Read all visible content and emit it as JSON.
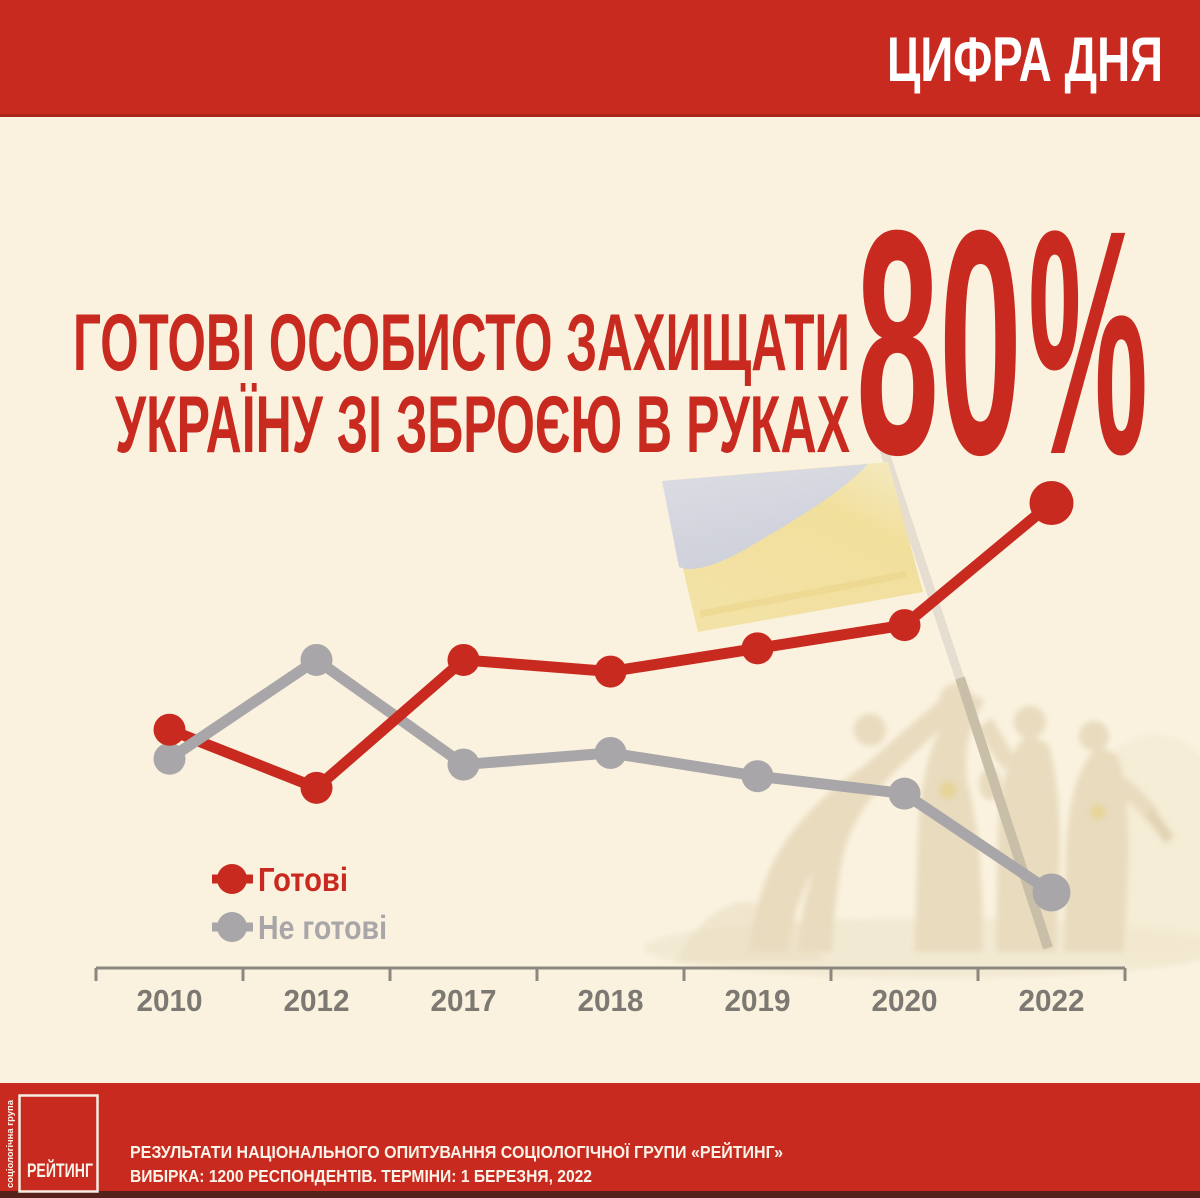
{
  "header": {
    "badge": "ЦИФРА ДНЯ"
  },
  "headline": {
    "title_line1": "ГОТОВІ ОСОБИСТО ЗАХИЩАТИ",
    "title_line2": "УКРАЇНУ ЗІ ЗБРОЄЮ В РУКАХ",
    "big_value": "80%"
  },
  "chart_data": {
    "type": "line",
    "categories": [
      "2010",
      "2012",
      "2017",
      "2018",
      "2019",
      "2020",
      "2022"
    ],
    "series": [
      {
        "name": "Готові",
        "color": "#c92a20",
        "values": [
          41,
          31,
          53,
          51,
          55,
          59,
          80
        ]
      },
      {
        "name": "Не готові",
        "color": "#a8a6a8",
        "values": [
          36,
          53,
          35,
          37,
          33,
          30,
          13
        ]
      }
    ],
    "ylim": [
      0,
      100
    ],
    "grid": false,
    "axis": "x-only",
    "legend_position": "bottom-left"
  },
  "footer": {
    "logo_text": "РЕЙТИНГ",
    "logo_side_text": "соціологічна група",
    "line1": "РЕЗУЛЬТАТИ НАЦІОНАЛЬНОГО ОПИТУВАННЯ СОЦІОЛОГІЧНОЇ ГРУПИ «РЕЙТИНГ»",
    "line2": "ВИБІРКА: 1200 РЕСПОНДЕНТІВ. ТЕРМІНИ: 1 БЕРЕЗНЯ, 2022"
  },
  "colors": {
    "accent_red": "#c92a20",
    "gray_series": "#a8a6a8",
    "background": "#faf2df"
  }
}
